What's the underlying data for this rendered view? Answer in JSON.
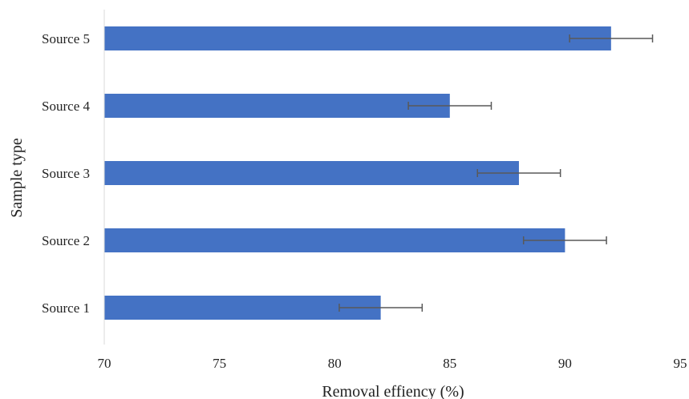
{
  "chart_data": {
    "type": "bar",
    "orientation": "horizontal",
    "categories": [
      "Source 1",
      "Source 2",
      "Source 3",
      "Source 4",
      "Source 5"
    ],
    "values": [
      82,
      90,
      88,
      85,
      92
    ],
    "errors": [
      1.8,
      1.8,
      1.8,
      1.8,
      1.8
    ],
    "xlabel": "Removal effiency (%)",
    "ylabel": "Sample type",
    "xlim": [
      70,
      95
    ],
    "xticks": [
      70,
      75,
      80,
      85,
      90,
      95
    ],
    "grid": false,
    "legend": "none",
    "bar_color": "#4472C4",
    "error_bar_color": "#595959"
  }
}
